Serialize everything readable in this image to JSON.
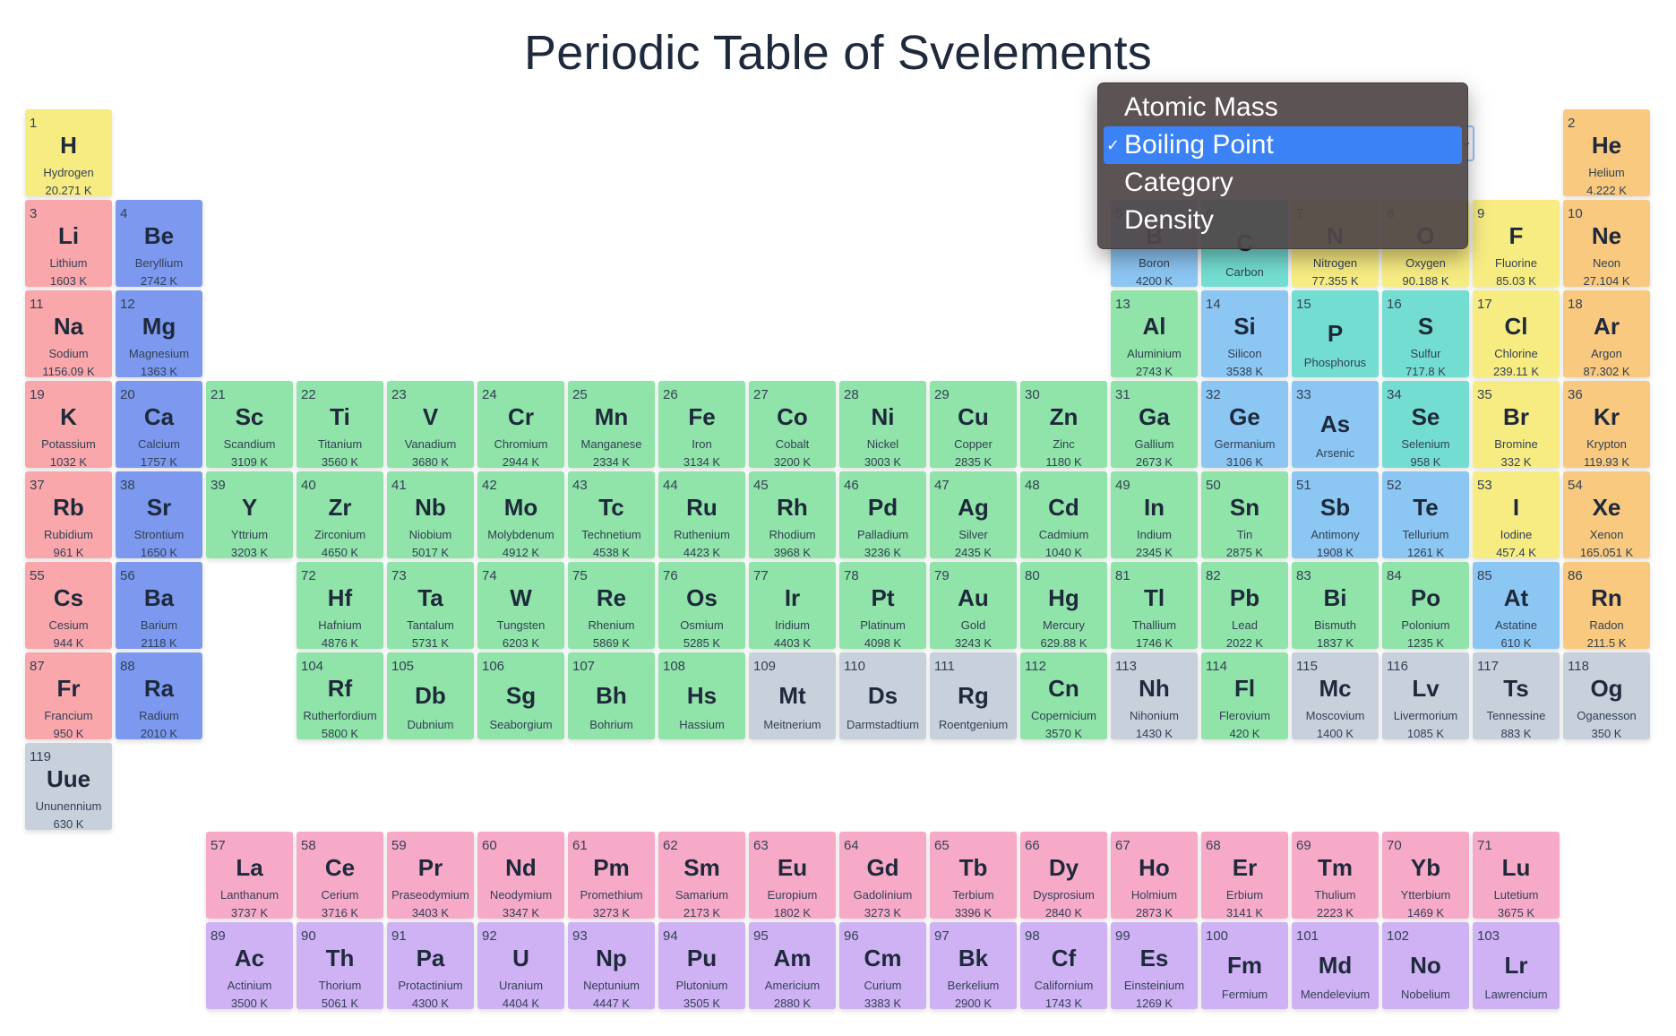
{
  "title": "Periodic Table of Svelements",
  "colors": {
    "alkali": "#f9a7ab",
    "alkaline": "#7c99ef",
    "transition": "#90e3a9",
    "postTransition": "#90e3a9",
    "metalloid": "#8cc6f2",
    "nonmetal": "#74ddd2",
    "halogen": "#f7ec82",
    "noble": "#f8c97e",
    "unknown": "#c8d0dc",
    "lanthanide": "#f7aac8",
    "actinide": "#cfb2f4",
    "hydrogen": "#f7ec82"
  },
  "dropdown": {
    "options": [
      "Atomic Mass",
      "Boiling Point",
      "Category",
      "Density"
    ],
    "selected": "Boiling Point",
    "check": "✓"
  },
  "elements": [
    {
      "n": 1,
      "s": "H",
      "name": "Hydrogen",
      "v": "20.271 K",
      "c": "hydrogen"
    },
    {
      "n": 2,
      "s": "He",
      "name": "Helium",
      "v": "4.222 K",
      "c": "noble"
    },
    {
      "n": 3,
      "s": "Li",
      "name": "Lithium",
      "v": "1603 K",
      "c": "alkali"
    },
    {
      "n": 4,
      "s": "Be",
      "name": "Beryllium",
      "v": "2742 K",
      "c": "alkaline"
    },
    {
      "n": 5,
      "s": "B",
      "name": "Boron",
      "v": "4200 K",
      "c": "metalloid"
    },
    {
      "n": 6,
      "s": "C",
      "name": "Carbon",
      "v": "",
      "c": "nonmetal"
    },
    {
      "n": 7,
      "s": "N",
      "name": "Nitrogen",
      "v": "77.355 K",
      "c": "halogen"
    },
    {
      "n": 8,
      "s": "O",
      "name": "Oxygen",
      "v": "90.188 K",
      "c": "halogen"
    },
    {
      "n": 9,
      "s": "F",
      "name": "Fluorine",
      "v": "85.03 K",
      "c": "halogen"
    },
    {
      "n": 10,
      "s": "Ne",
      "name": "Neon",
      "v": "27.104 K",
      "c": "noble"
    },
    {
      "n": 11,
      "s": "Na",
      "name": "Sodium",
      "v": "1156.09 K",
      "c": "alkali"
    },
    {
      "n": 12,
      "s": "Mg",
      "name": "Magnesium",
      "v": "1363 K",
      "c": "alkaline"
    },
    {
      "n": 13,
      "s": "Al",
      "name": "Aluminium",
      "v": "2743 K",
      "c": "transition"
    },
    {
      "n": 14,
      "s": "Si",
      "name": "Silicon",
      "v": "3538 K",
      "c": "metalloid"
    },
    {
      "n": 15,
      "s": "P",
      "name": "Phosphorus",
      "v": "",
      "c": "nonmetal"
    },
    {
      "n": 16,
      "s": "S",
      "name": "Sulfur",
      "v": "717.8 K",
      "c": "nonmetal"
    },
    {
      "n": 17,
      "s": "Cl",
      "name": "Chlorine",
      "v": "239.11 K",
      "c": "halogen"
    },
    {
      "n": 18,
      "s": "Ar",
      "name": "Argon",
      "v": "87.302 K",
      "c": "noble"
    },
    {
      "n": 19,
      "s": "K",
      "name": "Potassium",
      "v": "1032 K",
      "c": "alkali"
    },
    {
      "n": 20,
      "s": "Ca",
      "name": "Calcium",
      "v": "1757 K",
      "c": "alkaline"
    },
    {
      "n": 21,
      "s": "Sc",
      "name": "Scandium",
      "v": "3109 K",
      "c": "transition"
    },
    {
      "n": 22,
      "s": "Ti",
      "name": "Titanium",
      "v": "3560 K",
      "c": "transition"
    },
    {
      "n": 23,
      "s": "V",
      "name": "Vanadium",
      "v": "3680 K",
      "c": "transition"
    },
    {
      "n": 24,
      "s": "Cr",
      "name": "Chromium",
      "v": "2944 K",
      "c": "transition"
    },
    {
      "n": 25,
      "s": "Mn",
      "name": "Manganese",
      "v": "2334 K",
      "c": "transition"
    },
    {
      "n": 26,
      "s": "Fe",
      "name": "Iron",
      "v": "3134 K",
      "c": "transition"
    },
    {
      "n": 27,
      "s": "Co",
      "name": "Cobalt",
      "v": "3200 K",
      "c": "transition"
    },
    {
      "n": 28,
      "s": "Ni",
      "name": "Nickel",
      "v": "3003 K",
      "c": "transition"
    },
    {
      "n": 29,
      "s": "Cu",
      "name": "Copper",
      "v": "2835 K",
      "c": "transition"
    },
    {
      "n": 30,
      "s": "Zn",
      "name": "Zinc",
      "v": "1180 K",
      "c": "transition"
    },
    {
      "n": 31,
      "s": "Ga",
      "name": "Gallium",
      "v": "2673 K",
      "c": "transition"
    },
    {
      "n": 32,
      "s": "Ge",
      "name": "Germanium",
      "v": "3106 K",
      "c": "metalloid"
    },
    {
      "n": 33,
      "s": "As",
      "name": "Arsenic",
      "v": "",
      "c": "metalloid"
    },
    {
      "n": 34,
      "s": "Se",
      "name": "Selenium",
      "v": "958 K",
      "c": "nonmetal"
    },
    {
      "n": 35,
      "s": "Br",
      "name": "Bromine",
      "v": "332 K",
      "c": "halogen"
    },
    {
      "n": 36,
      "s": "Kr",
      "name": "Krypton",
      "v": "119.93 K",
      "c": "noble"
    },
    {
      "n": 37,
      "s": "Rb",
      "name": "Rubidium",
      "v": "961 K",
      "c": "alkali"
    },
    {
      "n": 38,
      "s": "Sr",
      "name": "Strontium",
      "v": "1650 K",
      "c": "alkaline"
    },
    {
      "n": 39,
      "s": "Y",
      "name": "Yttrium",
      "v": "3203 K",
      "c": "transition"
    },
    {
      "n": 40,
      "s": "Zr",
      "name": "Zirconium",
      "v": "4650 K",
      "c": "transition"
    },
    {
      "n": 41,
      "s": "Nb",
      "name": "Niobium",
      "v": "5017 K",
      "c": "transition"
    },
    {
      "n": 42,
      "s": "Mo",
      "name": "Molybdenum",
      "v": "4912 K",
      "c": "transition"
    },
    {
      "n": 43,
      "s": "Tc",
      "name": "Technetium",
      "v": "4538 K",
      "c": "transition"
    },
    {
      "n": 44,
      "s": "Ru",
      "name": "Ruthenium",
      "v": "4423 K",
      "c": "transition"
    },
    {
      "n": 45,
      "s": "Rh",
      "name": "Rhodium",
      "v": "3968 K",
      "c": "transition"
    },
    {
      "n": 46,
      "s": "Pd",
      "name": "Palladium",
      "v": "3236 K",
      "c": "transition"
    },
    {
      "n": 47,
      "s": "Ag",
      "name": "Silver",
      "v": "2435 K",
      "c": "transition"
    },
    {
      "n": 48,
      "s": "Cd",
      "name": "Cadmium",
      "v": "1040 K",
      "c": "transition"
    },
    {
      "n": 49,
      "s": "In",
      "name": "Indium",
      "v": "2345 K",
      "c": "transition"
    },
    {
      "n": 50,
      "s": "Sn",
      "name": "Tin",
      "v": "2875 K",
      "c": "transition"
    },
    {
      "n": 51,
      "s": "Sb",
      "name": "Antimony",
      "v": "1908 K",
      "c": "metalloid"
    },
    {
      "n": 52,
      "s": "Te",
      "name": "Tellurium",
      "v": "1261 K",
      "c": "metalloid"
    },
    {
      "n": 53,
      "s": "I",
      "name": "Iodine",
      "v": "457.4 K",
      "c": "halogen"
    },
    {
      "n": 54,
      "s": "Xe",
      "name": "Xenon",
      "v": "165.051 K",
      "c": "noble"
    },
    {
      "n": 55,
      "s": "Cs",
      "name": "Cesium",
      "v": "944 K",
      "c": "alkali"
    },
    {
      "n": 56,
      "s": "Ba",
      "name": "Barium",
      "v": "2118 K",
      "c": "alkaline"
    },
    {
      "n": 72,
      "s": "Hf",
      "name": "Hafnium",
      "v": "4876 K",
      "c": "transition"
    },
    {
      "n": 73,
      "s": "Ta",
      "name": "Tantalum",
      "v": "5731 K",
      "c": "transition"
    },
    {
      "n": 74,
      "s": "W",
      "name": "Tungsten",
      "v": "6203 K",
      "c": "transition"
    },
    {
      "n": 75,
      "s": "Re",
      "name": "Rhenium",
      "v": "5869 K",
      "c": "transition"
    },
    {
      "n": 76,
      "s": "Os",
      "name": "Osmium",
      "v": "5285 K",
      "c": "transition"
    },
    {
      "n": 77,
      "s": "Ir",
      "name": "Iridium",
      "v": "4403 K",
      "c": "transition"
    },
    {
      "n": 78,
      "s": "Pt",
      "name": "Platinum",
      "v": "4098 K",
      "c": "transition"
    },
    {
      "n": 79,
      "s": "Au",
      "name": "Gold",
      "v": "3243 K",
      "c": "transition"
    },
    {
      "n": 80,
      "s": "Hg",
      "name": "Mercury",
      "v": "629.88 K",
      "c": "transition"
    },
    {
      "n": 81,
      "s": "Tl",
      "name": "Thallium",
      "v": "1746 K",
      "c": "transition"
    },
    {
      "n": 82,
      "s": "Pb",
      "name": "Lead",
      "v": "2022 K",
      "c": "transition"
    },
    {
      "n": 83,
      "s": "Bi",
      "name": "Bismuth",
      "v": "1837 K",
      "c": "transition"
    },
    {
      "n": 84,
      "s": "Po",
      "name": "Polonium",
      "v": "1235 K",
      "c": "transition"
    },
    {
      "n": 85,
      "s": "At",
      "name": "Astatine",
      "v": "610 K",
      "c": "metalloid"
    },
    {
      "n": 86,
      "s": "Rn",
      "name": "Radon",
      "v": "211.5 K",
      "c": "noble"
    },
    {
      "n": 87,
      "s": "Fr",
      "name": "Francium",
      "v": "950 K",
      "c": "alkali"
    },
    {
      "n": 88,
      "s": "Ra",
      "name": "Radium",
      "v": "2010 K",
      "c": "alkaline"
    },
    {
      "n": 104,
      "s": "Rf",
      "name": "Rutherfordium",
      "v": "5800 K",
      "c": "transition"
    },
    {
      "n": 105,
      "s": "Db",
      "name": "Dubnium",
      "v": "",
      "c": "transition"
    },
    {
      "n": 106,
      "s": "Sg",
      "name": "Seaborgium",
      "v": "",
      "c": "transition"
    },
    {
      "n": 107,
      "s": "Bh",
      "name": "Bohrium",
      "v": "",
      "c": "transition"
    },
    {
      "n": 108,
      "s": "Hs",
      "name": "Hassium",
      "v": "",
      "c": "transition"
    },
    {
      "n": 109,
      "s": "Mt",
      "name": "Meitnerium",
      "v": "",
      "c": "unknown"
    },
    {
      "n": 110,
      "s": "Ds",
      "name": "Darmstadtium",
      "v": "",
      "c": "unknown"
    },
    {
      "n": 111,
      "s": "Rg",
      "name": "Roentgenium",
      "v": "",
      "c": "unknown"
    },
    {
      "n": 112,
      "s": "Cn",
      "name": "Copernicium",
      "v": "3570 K",
      "c": "transition"
    },
    {
      "n": 113,
      "s": "Nh",
      "name": "Nihonium",
      "v": "1430 K",
      "c": "unknown"
    },
    {
      "n": 114,
      "s": "Fl",
      "name": "Flerovium",
      "v": "420 K",
      "c": "transition"
    },
    {
      "n": 115,
      "s": "Mc",
      "name": "Moscovium",
      "v": "1400 K",
      "c": "unknown"
    },
    {
      "n": 116,
      "s": "Lv",
      "name": "Livermorium",
      "v": "1085 K",
      "c": "unknown"
    },
    {
      "n": 117,
      "s": "Ts",
      "name": "Tennessine",
      "v": "883 K",
      "c": "unknown"
    },
    {
      "n": 118,
      "s": "Og",
      "name": "Oganesson",
      "v": "350 K",
      "c": "unknown"
    },
    {
      "n": 119,
      "s": "Uue",
      "name": "Ununennium",
      "v": "630 K",
      "c": "unknown"
    },
    {
      "n": 57,
      "s": "La",
      "name": "Lanthanum",
      "v": "3737 K",
      "c": "lanthanide"
    },
    {
      "n": 58,
      "s": "Ce",
      "name": "Cerium",
      "v": "3716 K",
      "c": "lanthanide"
    },
    {
      "n": 59,
      "s": "Pr",
      "name": "Praseodymium",
      "v": "3403 K",
      "c": "lanthanide"
    },
    {
      "n": 60,
      "s": "Nd",
      "name": "Neodymium",
      "v": "3347 K",
      "c": "lanthanide"
    },
    {
      "n": 61,
      "s": "Pm",
      "name": "Promethium",
      "v": "3273 K",
      "c": "lanthanide"
    },
    {
      "n": 62,
      "s": "Sm",
      "name": "Samarium",
      "v": "2173 K",
      "c": "lanthanide"
    },
    {
      "n": 63,
      "s": "Eu",
      "name": "Europium",
      "v": "1802 K",
      "c": "lanthanide"
    },
    {
      "n": 64,
      "s": "Gd",
      "name": "Gadolinium",
      "v": "3273 K",
      "c": "lanthanide"
    },
    {
      "n": 65,
      "s": "Tb",
      "name": "Terbium",
      "v": "3396 K",
      "c": "lanthanide"
    },
    {
      "n": 66,
      "s": "Dy",
      "name": "Dysprosium",
      "v": "2840 K",
      "c": "lanthanide"
    },
    {
      "n": 67,
      "s": "Ho",
      "name": "Holmium",
      "v": "2873 K",
      "c": "lanthanide"
    },
    {
      "n": 68,
      "s": "Er",
      "name": "Erbium",
      "v": "3141 K",
      "c": "lanthanide"
    },
    {
      "n": 69,
      "s": "Tm",
      "name": "Thulium",
      "v": "2223 K",
      "c": "lanthanide"
    },
    {
      "n": 70,
      "s": "Yb",
      "name": "Ytterbium",
      "v": "1469 K",
      "c": "lanthanide"
    },
    {
      "n": 71,
      "s": "Lu",
      "name": "Lutetium",
      "v": "3675 K",
      "c": "lanthanide"
    },
    {
      "n": 89,
      "s": "Ac",
      "name": "Actinium",
      "v": "3500 K",
      "c": "actinide"
    },
    {
      "n": 90,
      "s": "Th",
      "name": "Thorium",
      "v": "5061 K",
      "c": "actinide"
    },
    {
      "n": 91,
      "s": "Pa",
      "name": "Protactinium",
      "v": "4300 K",
      "c": "actinide"
    },
    {
      "n": 92,
      "s": "U",
      "name": "Uranium",
      "v": "4404 K",
      "c": "actinide"
    },
    {
      "n": 93,
      "s": "Np",
      "name": "Neptunium",
      "v": "4447 K",
      "c": "actinide"
    },
    {
      "n": 94,
      "s": "Pu",
      "name": "Plutonium",
      "v": "3505 K",
      "c": "actinide"
    },
    {
      "n": 95,
      "s": "Am",
      "name": "Americium",
      "v": "2880 K",
      "c": "actinide"
    },
    {
      "n": 96,
      "s": "Cm",
      "name": "Curium",
      "v": "3383 K",
      "c": "actinide"
    },
    {
      "n": 97,
      "s": "Bk",
      "name": "Berkelium",
      "v": "2900 K",
      "c": "actinide"
    },
    {
      "n": 98,
      "s": "Cf",
      "name": "Californium",
      "v": "1743 K",
      "c": "actinide"
    },
    {
      "n": 99,
      "s": "Es",
      "name": "Einsteinium",
      "v": "1269 K",
      "c": "actinide"
    },
    {
      "n": 100,
      "s": "Fm",
      "name": "Fermium",
      "v": "",
      "c": "actinide"
    },
    {
      "n": 101,
      "s": "Md",
      "name": "Mendelevium",
      "v": "",
      "c": "actinide"
    },
    {
      "n": 102,
      "s": "No",
      "name": "Nobelium",
      "v": "",
      "c": "actinide"
    },
    {
      "n": 103,
      "s": "Lr",
      "name": "Lawrencium",
      "v": "",
      "c": "actinide"
    }
  ]
}
